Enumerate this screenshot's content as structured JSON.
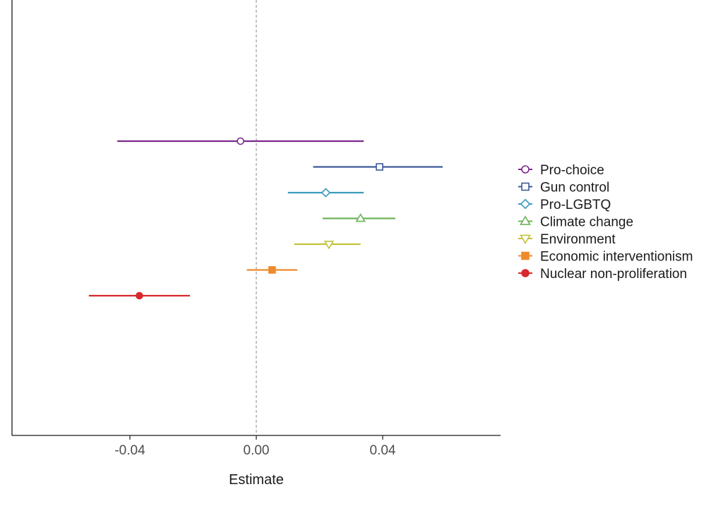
{
  "chart_data": {
    "type": "forest",
    "title": "",
    "xlabel": "Estimate",
    "ylabel": "",
    "xlim": [
      -0.076,
      0.076
    ],
    "x_ticks": [
      -0.04,
      0.0,
      0.04
    ],
    "x_tick_labels": [
      "-0.04",
      "0.00",
      "0.04"
    ],
    "reference_line": 0,
    "grid": false,
    "legend_position": "right",
    "series": [
      {
        "name": "Pro-choice",
        "estimate": -0.005,
        "ci_low": -0.044,
        "ci_high": 0.034,
        "color": "#7b2a8c",
        "marker": "circle-open"
      },
      {
        "name": "Gun control",
        "estimate": 0.039,
        "ci_low": 0.018,
        "ci_high": 0.059,
        "color": "#3d5a98",
        "marker": "square-open"
      },
      {
        "name": "Pro-LGBTQ",
        "estimate": 0.022,
        "ci_low": 0.01,
        "ci_high": 0.034,
        "color": "#3e9bbd",
        "marker": "diamond-open"
      },
      {
        "name": "Climate change",
        "estimate": 0.033,
        "ci_low": 0.021,
        "ci_high": 0.044,
        "color": "#6db35a",
        "marker": "triangle-up-open"
      },
      {
        "name": "Environment",
        "estimate": 0.023,
        "ci_low": 0.012,
        "ci_high": 0.033,
        "color": "#c2c23c",
        "marker": "triangle-down-open"
      },
      {
        "name": "Economic interventionism",
        "estimate": 0.005,
        "ci_low": -0.003,
        "ci_high": 0.013,
        "color": "#ee8a2b",
        "marker": "square-filled"
      },
      {
        "name": "Nuclear non-proliferation",
        "estimate": -0.037,
        "ci_low": -0.053,
        "ci_high": -0.021,
        "color": "#d9282c",
        "marker": "circle-filled"
      }
    ]
  }
}
